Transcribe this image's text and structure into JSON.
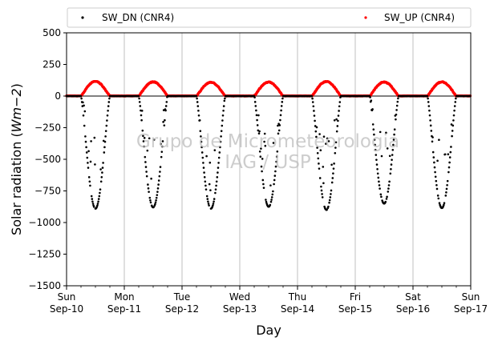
{
  "chart_data": {
    "type": "scatter",
    "xlabel": "Day",
    "ylabel_prefix": "Solar radiation (",
    "ylabel_unit": "Wm−2",
    "ylabel_suffix": ")",
    "ylim": [
      -1500,
      500
    ],
    "yticks": [
      500,
      250,
      0,
      -250,
      -500,
      -750,
      -1000,
      -1250,
      -1500
    ],
    "ytick_labels": [
      "500",
      "250",
      "0",
      "−250",
      "−500",
      "−750",
      "−1000",
      "−1250",
      "−1500"
    ],
    "xlim": [
      0,
      7
    ],
    "xticks": [
      {
        "x": 0,
        "day": "Sun",
        "date": "Sep-10"
      },
      {
        "x": 1,
        "day": "Mon",
        "date": "Sep-11"
      },
      {
        "x": 2,
        "day": "Tue",
        "date": "Sep-12"
      },
      {
        "x": 3,
        "day": "Wed",
        "date": "Sep-13"
      },
      {
        "x": 4,
        "day": "Thu",
        "date": "Sep-14"
      },
      {
        "x": 5,
        "day": "Fri",
        "date": "Sep-15"
      },
      {
        "x": 6,
        "day": "Sat",
        "date": "Sep-16"
      },
      {
        "x": 7,
        "day": "Sun",
        "date": "Sep-17"
      }
    ],
    "grid": "vertical",
    "legend_placement": "top",
    "zero_line": true,
    "series": [
      {
        "name": "SW_DN (CNR4)",
        "color": "#000000",
        "daily_peaks": [
          -890,
          -880,
          -890,
          -875,
          -900,
          -850,
          -885
        ]
      },
      {
        "name": "SW_UP (CNR4)",
        "color": "#ff0000",
        "daily_peaks": [
          115,
          112,
          108,
          110,
          115,
          110,
          112
        ]
      }
    ],
    "daylight_hours": [
      6,
      18
    ]
  },
  "watermark": {
    "line1": "Grupo de Micrometeorologia",
    "line2": "IAG / USP"
  }
}
